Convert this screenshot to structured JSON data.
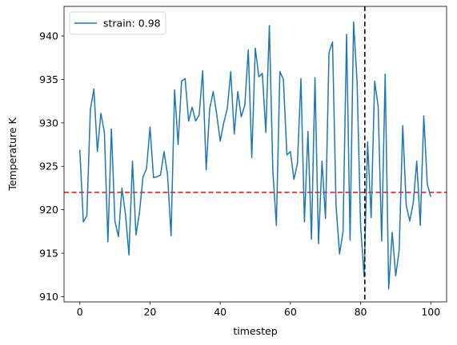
{
  "chart_data": {
    "type": "line",
    "title": "",
    "xlabel": "timestep",
    "ylabel": "Temperature K",
    "xlim": [
      -4.5,
      104.5
    ],
    "ylim": [
      909.4,
      943.4
    ],
    "xticks": [
      0,
      20,
      40,
      60,
      80,
      100
    ],
    "yticks": [
      910,
      915,
      920,
      925,
      930,
      935,
      940
    ],
    "grid": false,
    "legend_position": "top-left",
    "series": [
      {
        "name": "strain: 0.98",
        "color": "#1f77b4",
        "x": [
          0,
          1,
          2,
          3,
          4,
          5,
          6,
          7,
          8,
          9,
          10,
          11,
          12,
          13,
          14,
          15,
          16,
          17,
          18,
          19,
          20,
          21,
          22,
          23,
          24,
          25,
          26,
          27,
          28,
          29,
          30,
          31,
          32,
          33,
          34,
          35,
          36,
          37,
          38,
          39,
          40,
          41,
          42,
          43,
          44,
          45,
          46,
          47,
          48,
          49,
          50,
          51,
          52,
          53,
          54,
          55,
          56,
          57,
          58,
          59,
          60,
          61,
          62,
          63,
          64,
          65,
          66,
          67,
          68,
          69,
          70,
          71,
          72,
          73,
          74,
          75,
          76,
          77,
          78,
          79,
          80,
          81,
          82,
          83,
          84,
          85,
          86,
          87,
          88,
          89,
          90,
          91,
          92,
          93,
          94,
          95,
          96,
          97,
          98,
          99,
          100
        ],
        "values": [
          926.9,
          918.6,
          919.3,
          931.5,
          933.9,
          926.7,
          931.1,
          928.9,
          916.3,
          929.3,
          918.7,
          916.9,
          922.5,
          919.5,
          914.8,
          925.6,
          917.1,
          919.7,
          923.8,
          924.7,
          929.5,
          923.7,
          923.8,
          924.0,
          926.7,
          924.0,
          917.0,
          933.8,
          927.5,
          934.8,
          935.1,
          930.2,
          931.8,
          930.2,
          930.9,
          936.0,
          924.6,
          931.6,
          933.6,
          931.0,
          927.9,
          930.0,
          931.6,
          935.9,
          928.7,
          933.6,
          930.7,
          932.0,
          938.4,
          926.0,
          938.6,
          935.3,
          935.7,
          928.9,
          941.2,
          924.4,
          918.2,
          935.9,
          935.0,
          926.3,
          926.7,
          923.5,
          925.3,
          935.1,
          918.6,
          929.0,
          916.6,
          935.2,
          916.1,
          925.6,
          919.0,
          938.1,
          939.3,
          920.5,
          914.9,
          917.5,
          940.2,
          916.5,
          941.6,
          934.7,
          918.2,
          912.3,
          927.8,
          919.1,
          934.8,
          931.9,
          916.4,
          935.6,
          910.9,
          917.4,
          912.4,
          915.4,
          929.7,
          920.5,
          918.7,
          920.8,
          925.6,
          918.2,
          930.8,
          922.9,
          921.5
        ]
      }
    ],
    "hlines": [
      {
        "y": 922.0,
        "color": "#ff0000",
        "style": "dashed"
      }
    ],
    "vlines": [
      {
        "x": 81.2,
        "color": "#000000",
        "style": "dashed"
      }
    ]
  }
}
